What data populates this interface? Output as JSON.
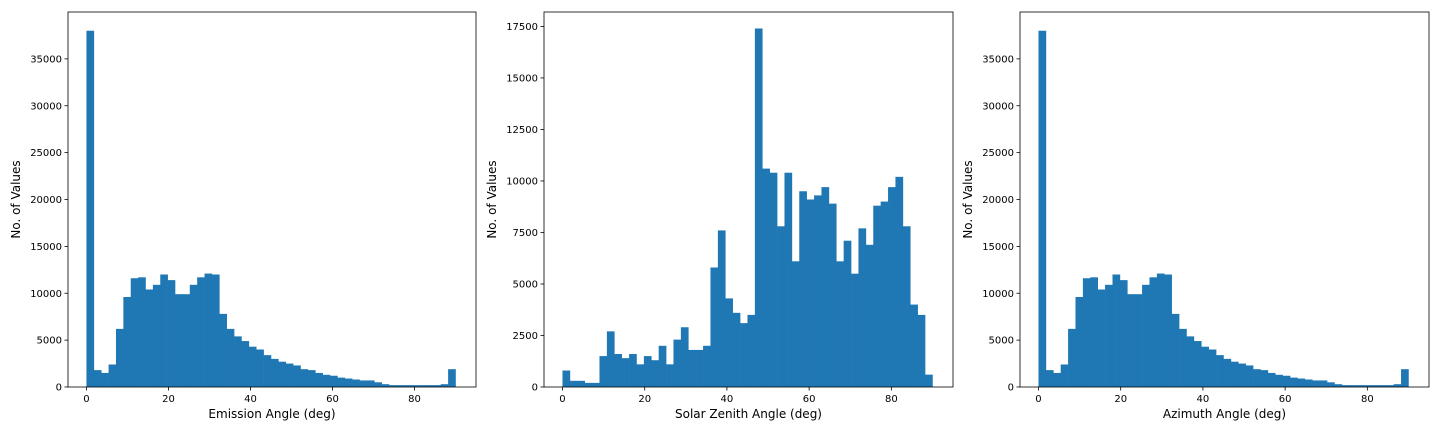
{
  "colors": {
    "bar": "#1f77b4",
    "axis": "#000000",
    "background": "#ffffff"
  },
  "chart_data": [
    {
      "type": "bar",
      "xlabel": "Emission Angle (deg)",
      "ylabel": "No. of Values",
      "xlim": [
        -4.5,
        95
      ],
      "ylim": [
        0,
        40000
      ],
      "xticks": [
        0,
        20,
        40,
        60,
        80
      ],
      "yticks": [
        0,
        5000,
        10000,
        15000,
        20000,
        25000,
        30000,
        35000
      ],
      "grid": false,
      "bin_start": 0,
      "bin_width": 1.8,
      "values": [
        38000,
        1800,
        1500,
        2400,
        6200,
        9600,
        11600,
        11700,
        10400,
        10900,
        12000,
        11400,
        9900,
        9900,
        10900,
        11700,
        12100,
        12000,
        7800,
        6200,
        5400,
        4900,
        4300,
        4000,
        3400,
        3000,
        2700,
        2500,
        2300,
        1900,
        1800,
        1500,
        1300,
        1200,
        1000,
        900,
        800,
        700,
        700,
        500,
        300,
        200,
        200,
        200,
        200,
        200,
        200,
        200,
        300,
        1900
      ]
    },
    {
      "type": "bar",
      "xlabel": "Solar Zenith Angle (deg)",
      "ylabel": "No. of Values",
      "xlim": [
        -4.5,
        95
      ],
      "ylim": [
        0,
        18200
      ],
      "xticks": [
        0,
        20,
        40,
        60,
        80
      ],
      "yticks": [
        0,
        2500,
        5000,
        7500,
        10000,
        12500,
        15000,
        17500
      ],
      "grid": false,
      "bin_start": 0,
      "bin_width": 1.8,
      "values": [
        800,
        300,
        300,
        200,
        200,
        1500,
        2700,
        1600,
        1400,
        1600,
        1100,
        1500,
        1300,
        2000,
        1100,
        2300,
        2900,
        1800,
        1800,
        2000,
        5800,
        7600,
        4300,
        3600,
        3100,
        3500,
        17400,
        10600,
        10400,
        7800,
        10400,
        6100,
        9500,
        9100,
        9300,
        9700,
        8900,
        6100,
        7100,
        5500,
        7700,
        6900,
        8800,
        9000,
        9700,
        10200,
        7800,
        4000,
        3500,
        600
      ]
    },
    {
      "type": "bar",
      "xlabel": "Azimuth Angle (deg)",
      "ylabel": "No. of Values",
      "xlim": [
        -4.5,
        95
      ],
      "ylim": [
        0,
        40000
      ],
      "xticks": [
        0,
        20,
        40,
        60,
        80
      ],
      "yticks": [
        0,
        5000,
        10000,
        15000,
        20000,
        25000,
        30000,
        35000
      ],
      "grid": false,
      "bin_start": 0,
      "bin_width": 1.8,
      "values": [
        38000,
        1800,
        1500,
        2400,
        6200,
        9600,
        11600,
        11700,
        10400,
        10900,
        12000,
        11400,
        9900,
        9900,
        10900,
        11700,
        12100,
        12000,
        7800,
        6200,
        5400,
        4900,
        4300,
        4000,
        3400,
        3000,
        2700,
        2500,
        2300,
        1900,
        1800,
        1500,
        1300,
        1200,
        1000,
        900,
        800,
        700,
        700,
        500,
        300,
        200,
        200,
        200,
        200,
        200,
        200,
        200,
        300,
        1900
      ]
    }
  ]
}
